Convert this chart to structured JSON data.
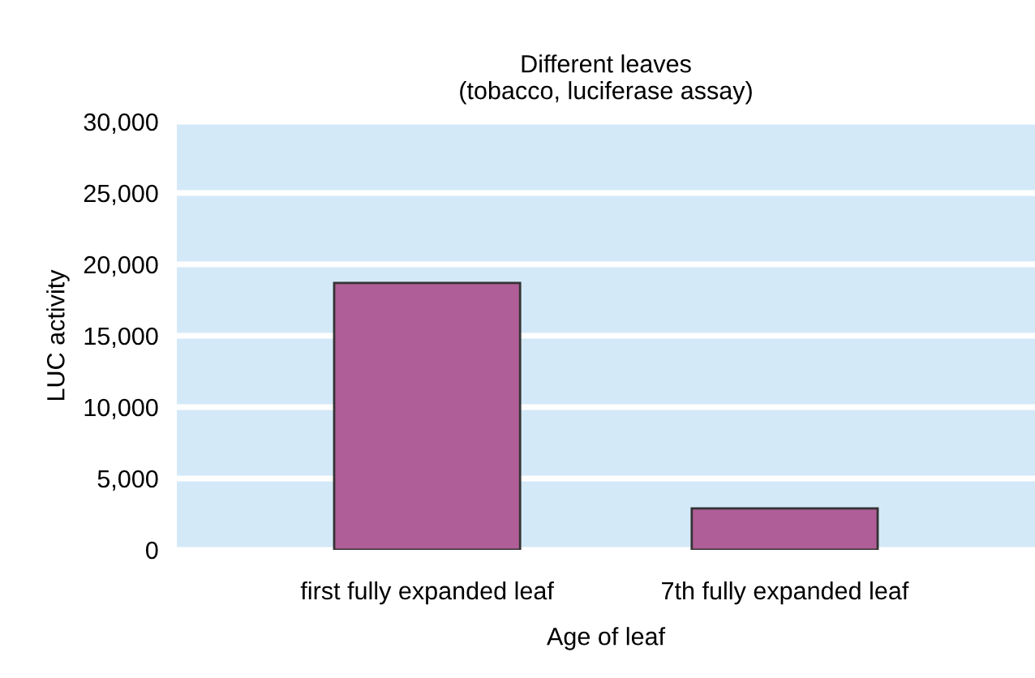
{
  "chart_data": {
    "type": "bar",
    "title": "Different leaves\n(tobacco, luciferase assay)",
    "xlabel": "Age of leaf",
    "ylabel": "LUC activity",
    "categories": [
      "first fully expanded leaf",
      "7th fully expanded leaf"
    ],
    "values": [
      18700,
      2900
    ],
    "color": "#b05e97",
    "ylim": [
      0,
      30000
    ],
    "yticks": [
      {
        "value": 0,
        "label": "0"
      },
      {
        "value": 5000,
        "label": "5,000"
      },
      {
        "value": 10000,
        "label": "10,000"
      },
      {
        "value": 15000,
        "label": "15,000"
      },
      {
        "value": 20000,
        "label": "20,000"
      },
      {
        "value": 25000,
        "label": "25,000"
      },
      {
        "value": 30000,
        "label": "30,000"
      }
    ],
    "grid": "y",
    "legend": false
  }
}
